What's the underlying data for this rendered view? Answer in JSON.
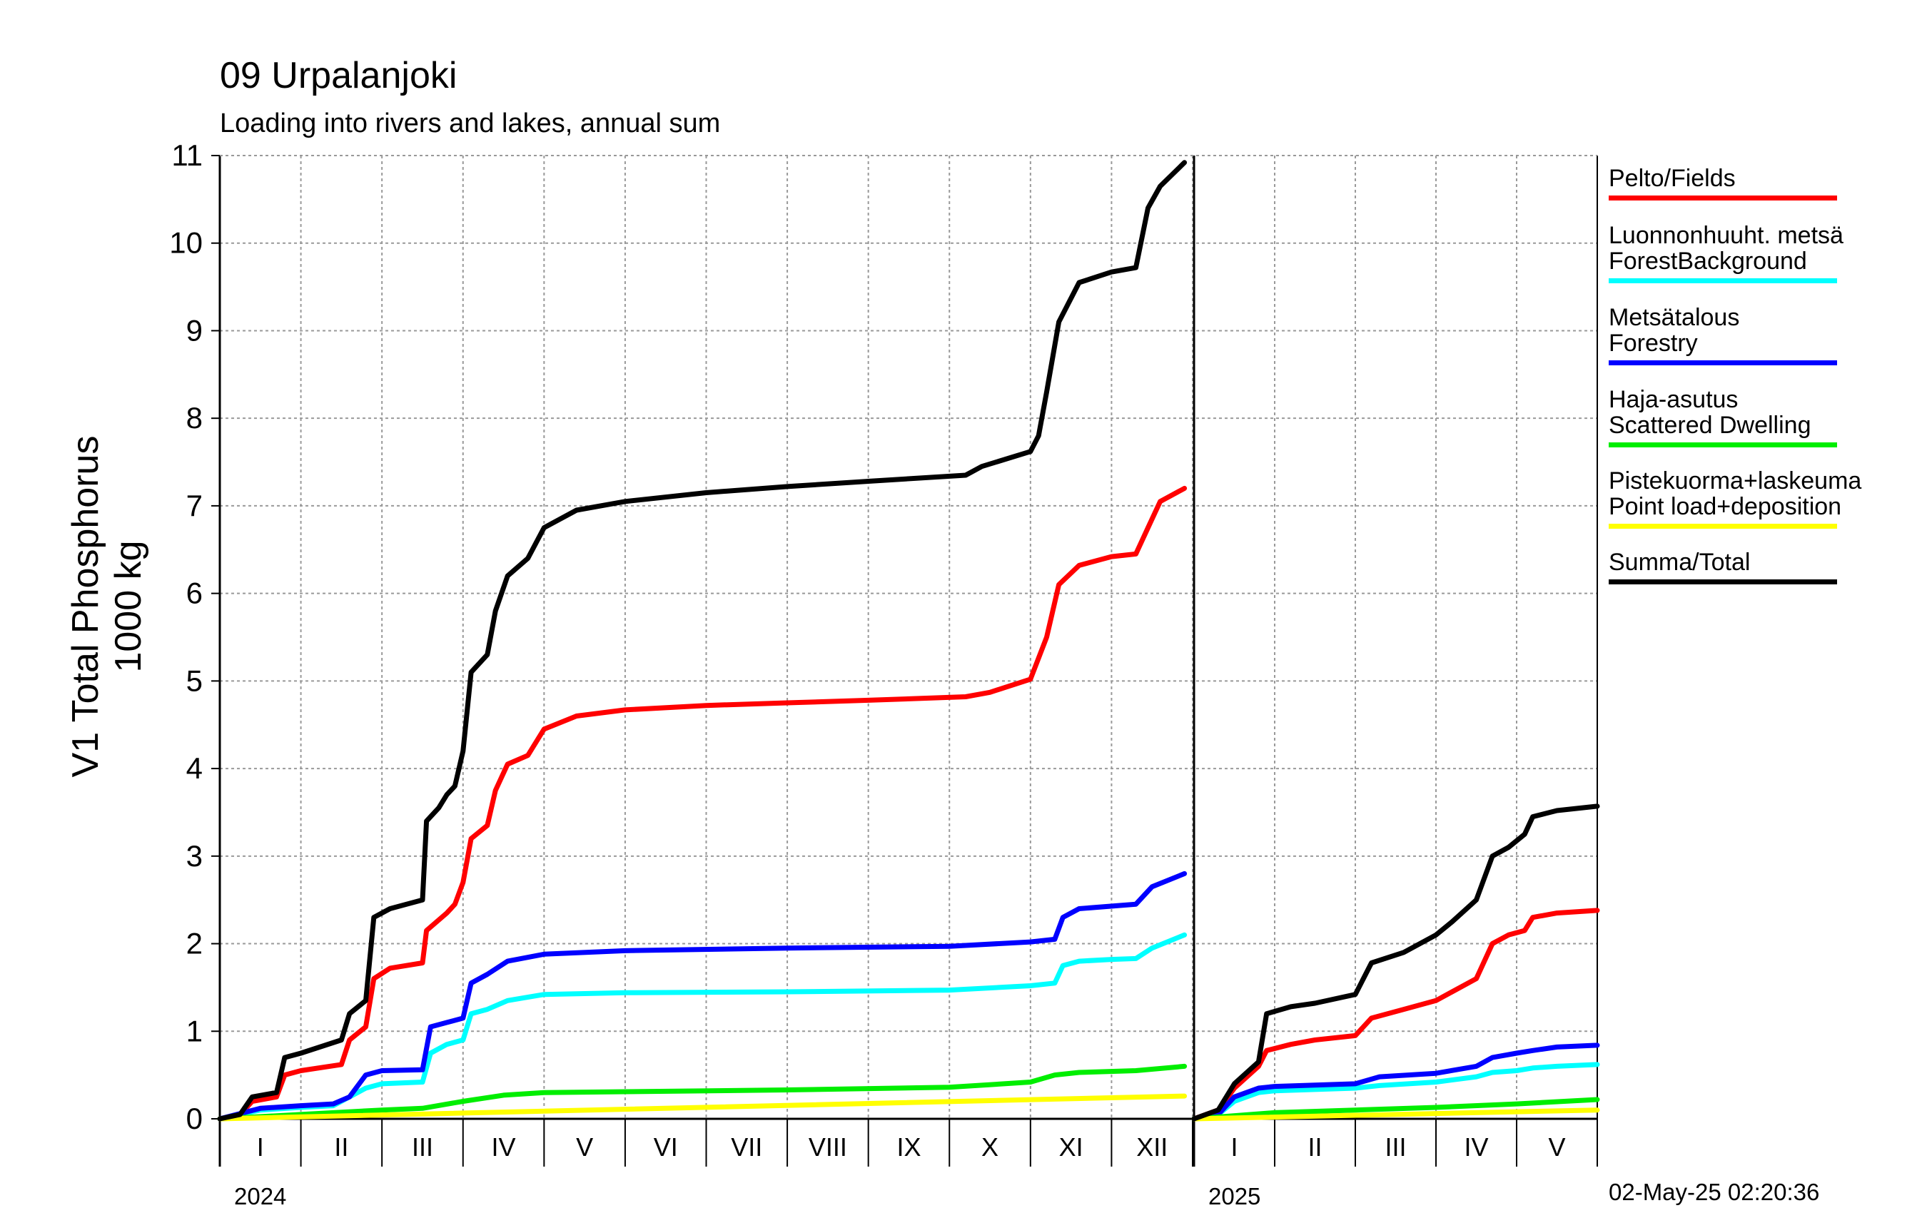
{
  "title": "09 Urpalanjoki",
  "subtitle": "Loading into rivers and lakes, annual sum",
  "timestamp": "02-May-25 02:20:36",
  "chart_data": {
    "type": "line",
    "ylabel": "V1 Total Phosphorus 1000 kg",
    "ylim": [
      0,
      11
    ],
    "yticks": [
      0,
      1,
      2,
      3,
      4,
      5,
      6,
      7,
      8,
      9,
      10,
      11
    ],
    "grid": true,
    "legend_position": "right",
    "x_unit": "month (1 = start of January; 13 = start of the next January)",
    "panels": [
      {
        "year": "2024",
        "months": [
          "I",
          "II",
          "III",
          "IV",
          "V",
          "VI",
          "VII",
          "VIII",
          "IX",
          "X",
          "XI",
          "XII"
        ],
        "xlim": [
          1,
          13
        ]
      },
      {
        "year": "2025",
        "months": [
          "I",
          "II",
          "III",
          "IV",
          "V"
        ],
        "xlim": [
          1,
          6
        ]
      }
    ],
    "series": [
      {
        "name": "Pelto/Fields",
        "color": "#ff0000",
        "data_2024": [
          [
            1,
            0
          ],
          [
            1.25,
            0.05
          ],
          [
            1.4,
            0.2
          ],
          [
            1.7,
            0.25
          ],
          [
            1.8,
            0.5
          ],
          [
            2,
            0.55
          ],
          [
            2.5,
            0.62
          ],
          [
            2.6,
            0.9
          ],
          [
            2.8,
            1.05
          ],
          [
            2.9,
            1.6
          ],
          [
            3.1,
            1.72
          ],
          [
            3.5,
            1.78
          ],
          [
            3.55,
            2.15
          ],
          [
            3.8,
            2.35
          ],
          [
            3.9,
            2.45
          ],
          [
            4,
            2.7
          ],
          [
            4.1,
            3.2
          ],
          [
            4.3,
            3.35
          ],
          [
            4.4,
            3.75
          ],
          [
            4.55,
            4.05
          ],
          [
            4.8,
            4.15
          ],
          [
            5,
            4.45
          ],
          [
            5.4,
            4.6
          ],
          [
            6,
            4.67
          ],
          [
            7,
            4.72
          ],
          [
            8,
            4.75
          ],
          [
            9,
            4.78
          ],
          [
            10.2,
            4.82
          ],
          [
            10.5,
            4.87
          ],
          [
            11,
            5.02
          ],
          [
            11.2,
            5.5
          ],
          [
            11.35,
            6.1
          ],
          [
            11.6,
            6.32
          ],
          [
            12,
            6.42
          ],
          [
            12.3,
            6.45
          ],
          [
            12.45,
            6.75
          ],
          [
            12.6,
            7.05
          ],
          [
            12.9,
            7.2
          ]
        ],
        "data_2025": [
          [
            1,
            0
          ],
          [
            1.3,
            0.1
          ],
          [
            1.5,
            0.35
          ],
          [
            1.8,
            0.6
          ],
          [
            1.9,
            0.78
          ],
          [
            2.2,
            0.85
          ],
          [
            2.5,
            0.9
          ],
          [
            3,
            0.95
          ],
          [
            3.2,
            1.15
          ],
          [
            3.6,
            1.25
          ],
          [
            4,
            1.35
          ],
          [
            4.2,
            1.45
          ],
          [
            4.5,
            1.6
          ],
          [
            4.7,
            2.0
          ],
          [
            4.9,
            2.1
          ],
          [
            5.1,
            2.15
          ],
          [
            5.2,
            2.3
          ],
          [
            5.5,
            2.35
          ],
          [
            6,
            2.38
          ]
        ]
      },
      {
        "name": "Luonnonhuuht. metsä\nForestBackground",
        "color": "#00ffff",
        "data_2024": [
          [
            1,
            0
          ],
          [
            1.5,
            0.1
          ],
          [
            2,
            0.13
          ],
          [
            2.4,
            0.15
          ],
          [
            2.6,
            0.25
          ],
          [
            2.8,
            0.35
          ],
          [
            3,
            0.4
          ],
          [
            3.5,
            0.42
          ],
          [
            3.6,
            0.75
          ],
          [
            3.8,
            0.85
          ],
          [
            4,
            0.9
          ],
          [
            4.1,
            1.2
          ],
          [
            4.3,
            1.25
          ],
          [
            4.55,
            1.35
          ],
          [
            5,
            1.42
          ],
          [
            6,
            1.44
          ],
          [
            8,
            1.45
          ],
          [
            10,
            1.47
          ],
          [
            11,
            1.52
          ],
          [
            11.3,
            1.55
          ],
          [
            11.4,
            1.75
          ],
          [
            11.6,
            1.8
          ],
          [
            12,
            1.82
          ],
          [
            12.3,
            1.83
          ],
          [
            12.5,
            1.95
          ],
          [
            12.9,
            2.1
          ]
        ],
        "data_2025": [
          [
            1,
            0
          ],
          [
            1.3,
            0.05
          ],
          [
            1.5,
            0.2
          ],
          [
            1.8,
            0.3
          ],
          [
            2,
            0.32
          ],
          [
            3,
            0.35
          ],
          [
            3.3,
            0.38
          ],
          [
            4,
            0.42
          ],
          [
            4.5,
            0.48
          ],
          [
            4.7,
            0.53
          ],
          [
            5,
            0.55
          ],
          [
            5.2,
            0.58
          ],
          [
            5.5,
            0.6
          ],
          [
            6,
            0.62
          ]
        ]
      },
      {
        "name": "Metsätalous\nForestry",
        "color": "#0000ff",
        "data_2024": [
          [
            1,
            0
          ],
          [
            1.5,
            0.12
          ],
          [
            2,
            0.15
          ],
          [
            2.4,
            0.17
          ],
          [
            2.6,
            0.25
          ],
          [
            2.8,
            0.5
          ],
          [
            3,
            0.55
          ],
          [
            3.5,
            0.56
          ],
          [
            3.6,
            1.05
          ],
          [
            3.8,
            1.1
          ],
          [
            4,
            1.15
          ],
          [
            4.1,
            1.55
          ],
          [
            4.3,
            1.65
          ],
          [
            4.55,
            1.8
          ],
          [
            5,
            1.88
          ],
          [
            6,
            1.92
          ],
          [
            8,
            1.95
          ],
          [
            10,
            1.97
          ],
          [
            11,
            2.02
          ],
          [
            11.3,
            2.05
          ],
          [
            11.4,
            2.3
          ],
          [
            11.6,
            2.4
          ],
          [
            12.3,
            2.45
          ],
          [
            12.5,
            2.65
          ],
          [
            12.9,
            2.8
          ]
        ],
        "data_2025": [
          [
            1,
            0
          ],
          [
            1.3,
            0.05
          ],
          [
            1.5,
            0.25
          ],
          [
            1.8,
            0.35
          ],
          [
            2,
            0.37
          ],
          [
            3,
            0.4
          ],
          [
            3.3,
            0.48
          ],
          [
            4,
            0.52
          ],
          [
            4.5,
            0.6
          ],
          [
            4.7,
            0.7
          ],
          [
            5,
            0.75
          ],
          [
            5.2,
            0.78
          ],
          [
            5.5,
            0.82
          ],
          [
            6,
            0.84
          ]
        ]
      },
      {
        "name": "Haja-asutus\nScattered Dwelling",
        "color": "#00ee00",
        "data_2024": [
          [
            1,
            0
          ],
          [
            2,
            0.05
          ],
          [
            3,
            0.1
          ],
          [
            3.5,
            0.12
          ],
          [
            4,
            0.2
          ],
          [
            4.5,
            0.27
          ],
          [
            5,
            0.3
          ],
          [
            6,
            0.31
          ],
          [
            8,
            0.33
          ],
          [
            10,
            0.36
          ],
          [
            11,
            0.42
          ],
          [
            11.3,
            0.5
          ],
          [
            11.6,
            0.53
          ],
          [
            12.3,
            0.55
          ],
          [
            12.9,
            0.6
          ]
        ],
        "data_2025": [
          [
            1,
            0
          ],
          [
            2,
            0.07
          ],
          [
            3,
            0.1
          ],
          [
            4,
            0.13
          ],
          [
            5,
            0.17
          ],
          [
            6,
            0.22
          ]
        ]
      },
      {
        "name": "Pistekuorma+laskeuma\nPoint load+deposition",
        "color": "#ffff00",
        "data_2024": [
          [
            1,
            0
          ],
          [
            12.9,
            0.26
          ]
        ],
        "data_2025": [
          [
            1,
            0
          ],
          [
            6,
            0.1
          ]
        ]
      },
      {
        "name": "Summa/Total",
        "color": "#000000",
        "data_2024": [
          [
            1,
            0
          ],
          [
            1.25,
            0.05
          ],
          [
            1.4,
            0.25
          ],
          [
            1.7,
            0.3
          ],
          [
            1.8,
            0.7
          ],
          [
            2,
            0.75
          ],
          [
            2.5,
            0.9
          ],
          [
            2.6,
            1.2
          ],
          [
            2.8,
            1.35
          ],
          [
            2.9,
            2.3
          ],
          [
            3.1,
            2.4
          ],
          [
            3.5,
            2.5
          ],
          [
            3.55,
            3.4
          ],
          [
            3.7,
            3.55
          ],
          [
            3.8,
            3.7
          ],
          [
            3.9,
            3.8
          ],
          [
            4,
            4.2
          ],
          [
            4.1,
            5.1
          ],
          [
            4.3,
            5.3
          ],
          [
            4.4,
            5.8
          ],
          [
            4.55,
            6.2
          ],
          [
            4.8,
            6.4
          ],
          [
            5,
            6.75
          ],
          [
            5.4,
            6.95
          ],
          [
            6,
            7.05
          ],
          [
            7,
            7.15
          ],
          [
            8,
            7.22
          ],
          [
            9,
            7.28
          ],
          [
            10.2,
            7.35
          ],
          [
            10.4,
            7.45
          ],
          [
            11,
            7.62
          ],
          [
            11.1,
            7.8
          ],
          [
            11.2,
            8.3
          ],
          [
            11.35,
            9.1
          ],
          [
            11.6,
            9.55
          ],
          [
            12,
            9.67
          ],
          [
            12.3,
            9.72
          ],
          [
            12.45,
            10.4
          ],
          [
            12.6,
            10.65
          ],
          [
            12.9,
            10.92
          ]
        ],
        "data_2025": [
          [
            1,
            0
          ],
          [
            1.3,
            0.1
          ],
          [
            1.5,
            0.4
          ],
          [
            1.8,
            0.65
          ],
          [
            1.9,
            1.2
          ],
          [
            2.2,
            1.28
          ],
          [
            2.5,
            1.32
          ],
          [
            3,
            1.42
          ],
          [
            3.2,
            1.78
          ],
          [
            3.6,
            1.9
          ],
          [
            4,
            2.1
          ],
          [
            4.2,
            2.25
          ],
          [
            4.5,
            2.5
          ],
          [
            4.7,
            3.0
          ],
          [
            4.9,
            3.1
          ],
          [
            5.1,
            3.25
          ],
          [
            5.2,
            3.45
          ],
          [
            5.5,
            3.52
          ],
          [
            6,
            3.57
          ]
        ]
      }
    ]
  }
}
